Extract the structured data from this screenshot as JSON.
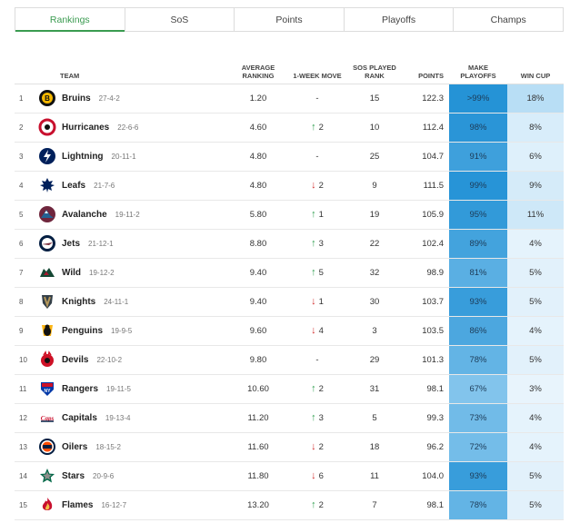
{
  "tabs": [
    {
      "label": "Rankings",
      "active": true
    },
    {
      "label": "SoS",
      "active": false
    },
    {
      "label": "Points",
      "active": false
    },
    {
      "label": "Playoffs",
      "active": false
    },
    {
      "label": "Champs",
      "active": false
    }
  ],
  "headers": {
    "team": "TEAM",
    "avg": "AVERAGE RANKING",
    "move": "1-WEEK MOVE",
    "sos": "SOS PLAYED RANK",
    "points": "POINTS",
    "playoffs": "MAKE PLAYOFFS",
    "cup": "WIN CUP"
  },
  "colors": {
    "accent": "#3a9b50",
    "up": "#2e9e4f",
    "down": "#d32f2f"
  },
  "rows": [
    {
      "rank": "1",
      "team": "Bruins",
      "record": "27-4-2",
      "avg": "1.20",
      "move_dir": "none",
      "move": "-",
      "sos": "15",
      "points": "122.3",
      "playoffs": ">99%",
      "playoffs_pct": 99.5,
      "cup": "18%",
      "cup_pct": 18,
      "logo": "bruins-logo-icon"
    },
    {
      "rank": "2",
      "team": "Hurricanes",
      "record": "22-6-6",
      "avg": "4.60",
      "move_dir": "up",
      "move": "2",
      "sos": "10",
      "points": "112.4",
      "playoffs": "98%",
      "playoffs_pct": 98,
      "cup": "8%",
      "cup_pct": 8,
      "logo": "hurricanes-logo-icon"
    },
    {
      "rank": "3",
      "team": "Lightning",
      "record": "20-11-1",
      "avg": "4.80",
      "move_dir": "none",
      "move": "-",
      "sos": "25",
      "points": "104.7",
      "playoffs": "91%",
      "playoffs_pct": 91,
      "cup": "6%",
      "cup_pct": 6,
      "logo": "lightning-logo-icon"
    },
    {
      "rank": "4",
      "team": "Leafs",
      "record": "21-7-6",
      "avg": "4.80",
      "move_dir": "down",
      "move": "2",
      "sos": "9",
      "points": "111.5",
      "playoffs": "99%",
      "playoffs_pct": 99,
      "cup": "9%",
      "cup_pct": 9,
      "logo": "leafs-logo-icon"
    },
    {
      "rank": "5",
      "team": "Avalanche",
      "record": "19-11-2",
      "avg": "5.80",
      "move_dir": "up",
      "move": "1",
      "sos": "19",
      "points": "105.9",
      "playoffs": "95%",
      "playoffs_pct": 95,
      "cup": "11%",
      "cup_pct": 11,
      "logo": "avalanche-logo-icon"
    },
    {
      "rank": "6",
      "team": "Jets",
      "record": "21-12-1",
      "avg": "8.80",
      "move_dir": "up",
      "move": "3",
      "sos": "22",
      "points": "102.4",
      "playoffs": "89%",
      "playoffs_pct": 89,
      "cup": "4%",
      "cup_pct": 4,
      "logo": "jets-logo-icon"
    },
    {
      "rank": "7",
      "team": "Wild",
      "record": "19-12-2",
      "avg": "9.40",
      "move_dir": "up",
      "move": "5",
      "sos": "32",
      "points": "98.9",
      "playoffs": "81%",
      "playoffs_pct": 81,
      "cup": "5%",
      "cup_pct": 5,
      "logo": "wild-logo-icon"
    },
    {
      "rank": "8",
      "team": "Knights",
      "record": "24-11-1",
      "avg": "9.40",
      "move_dir": "down",
      "move": "1",
      "sos": "30",
      "points": "103.7",
      "playoffs": "93%",
      "playoffs_pct": 93,
      "cup": "5%",
      "cup_pct": 5,
      "logo": "knights-logo-icon"
    },
    {
      "rank": "9",
      "team": "Penguins",
      "record": "19-9-5",
      "avg": "9.60",
      "move_dir": "down",
      "move": "4",
      "sos": "3",
      "points": "103.5",
      "playoffs": "86%",
      "playoffs_pct": 86,
      "cup": "4%",
      "cup_pct": 4,
      "logo": "penguins-logo-icon"
    },
    {
      "rank": "10",
      "team": "Devils",
      "record": "22-10-2",
      "avg": "9.80",
      "move_dir": "none",
      "move": "-",
      "sos": "29",
      "points": "101.3",
      "playoffs": "78%",
      "playoffs_pct": 78,
      "cup": "5%",
      "cup_pct": 5,
      "logo": "devils-logo-icon"
    },
    {
      "rank": "11",
      "team": "Rangers",
      "record": "19-11-5",
      "avg": "10.60",
      "move_dir": "up",
      "move": "2",
      "sos": "31",
      "points": "98.1",
      "playoffs": "67%",
      "playoffs_pct": 67,
      "cup": "3%",
      "cup_pct": 3,
      "logo": "rangers-logo-icon"
    },
    {
      "rank": "12",
      "team": "Capitals",
      "record": "19-13-4",
      "avg": "11.20",
      "move_dir": "up",
      "move": "3",
      "sos": "5",
      "points": "99.3",
      "playoffs": "73%",
      "playoffs_pct": 73,
      "cup": "4%",
      "cup_pct": 4,
      "logo": "capitals-logo-icon"
    },
    {
      "rank": "13",
      "team": "Oilers",
      "record": "18-15-2",
      "avg": "11.60",
      "move_dir": "down",
      "move": "2",
      "sos": "18",
      "points": "96.2",
      "playoffs": "72%",
      "playoffs_pct": 72,
      "cup": "4%",
      "cup_pct": 4,
      "logo": "oilers-logo-icon"
    },
    {
      "rank": "14",
      "team": "Stars",
      "record": "20-9-6",
      "avg": "11.80",
      "move_dir": "down",
      "move": "6",
      "sos": "11",
      "points": "104.0",
      "playoffs": "93%",
      "playoffs_pct": 93,
      "cup": "5%",
      "cup_pct": 5,
      "logo": "stars-logo-icon"
    },
    {
      "rank": "15",
      "team": "Flames",
      "record": "16-12-7",
      "avg": "13.20",
      "move_dir": "up",
      "move": "2",
      "sos": "7",
      "points": "98.1",
      "playoffs": "78%",
      "playoffs_pct": 78,
      "cup": "5%",
      "cup_pct": 5,
      "logo": "flames-logo-icon"
    }
  ]
}
